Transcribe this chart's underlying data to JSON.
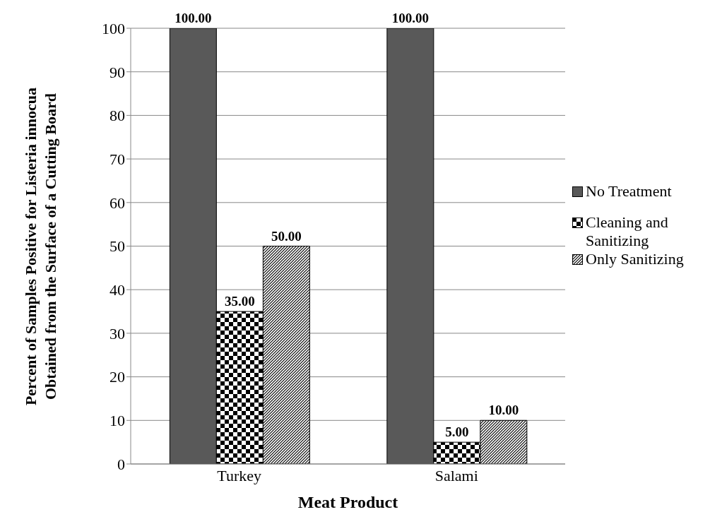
{
  "chart_data": {
    "type": "bar",
    "xlabel": "Meat Product",
    "ylabel": "Percent of Samples Positive for Listeria innocua Obtained from the Surface of a Cutting Board",
    "categories": [
      "Turkey",
      "Salami"
    ],
    "series": [
      {
        "name": "No Treatment",
        "color": "#595959",
        "values": [
          100,
          100
        ],
        "value_labels": [
          "100.00",
          "100.00"
        ]
      },
      {
        "name": "Cleaning and Sanitizing",
        "color": "#000000",
        "values": [
          35,
          5
        ],
        "value_labels": [
          "35.00",
          "5.00"
        ]
      },
      {
        "name": "Only Sanitizing",
        "color": "#000000",
        "values": [
          50,
          10
        ],
        "value_labels": [
          "50.00",
          "10.00"
        ]
      }
    ],
    "ylim": [
      0,
      100
    ],
    "yticks": [
      0,
      10,
      20,
      30,
      40,
      50,
      60,
      70,
      80,
      90,
      100
    ],
    "grid": "y",
    "legend": "right"
  }
}
